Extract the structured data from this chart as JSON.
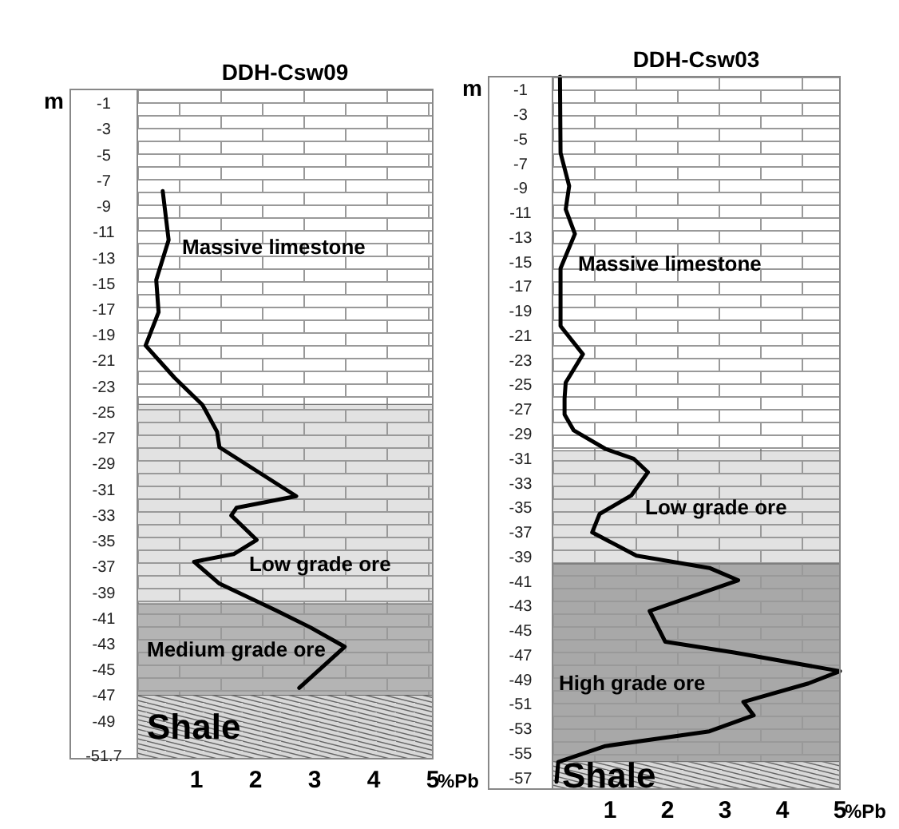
{
  "chart_data": [
    {
      "type": "line",
      "title": "DDH-Csw09",
      "xlabel": "%Pb",
      "ylabel": "m",
      "xlim": [
        0,
        5
      ],
      "xticks": [
        1,
        2,
        3,
        4,
        5
      ],
      "ylim": [
        -52,
        0
      ],
      "yticks": [
        -1,
        -3,
        -5,
        -7,
        -9,
        -11,
        -13,
        -15,
        -17,
        -19,
        -21,
        -23,
        -25,
        -27,
        -29,
        -31,
        -33,
        -35,
        -37,
        -39,
        -41,
        -43,
        -45,
        -47,
        -49,
        -51.7
      ],
      "series": [
        {
          "color": "#000000",
          "x": [
            0.43,
            0.53,
            0.32,
            0.36,
            0.14,
            0.63,
            1.1,
            1.15,
            1.35,
            1.39,
            2.69,
            1.68,
            1.59,
            2.02,
            1.63,
            0.96,
            1.39,
            2.36,
            2.93,
            3.51,
            2.74
          ],
          "values": [
            -7.9,
            -11.7,
            -14.8,
            -17.3,
            -19.9,
            -22.4,
            -24.5,
            -24.9,
            -26.6,
            -27.8,
            -31.6,
            -32.5,
            -33.1,
            -35.0,
            -36.1,
            -36.7,
            -38.4,
            -40.5,
            -41.8,
            -43.3,
            -46.5
          ]
        }
      ],
      "bands": [
        {
          "axis": "y",
          "from": 0,
          "to": -24.5,
          "label": "Massive limestone",
          "color": "#ffffff"
        },
        {
          "axis": "y",
          "from": -24.5,
          "to": -40.0,
          "label": "Low grade ore",
          "color": "#e2e2e2"
        },
        {
          "axis": "y",
          "from": -40.0,
          "to": -47.1,
          "label": "Medium grade ore",
          "color": "#b4b4b4"
        },
        {
          "axis": "y",
          "from": -47.1,
          "to": -52,
          "label": "Shale",
          "color": "#d8d8d8"
        }
      ]
    },
    {
      "type": "line",
      "title": "DDH-Csw03",
      "xlabel": "%Pb",
      "ylabel": "m",
      "xlim": [
        0,
        5
      ],
      "xticks": [
        1,
        2,
        3,
        4,
        5
      ],
      "ylim": [
        -58,
        0
      ],
      "yticks": [
        -1,
        -3,
        -5,
        -7,
        -9,
        -11,
        -13,
        -15,
        -17,
        -19,
        -21,
        -23,
        -25,
        -27,
        -29,
        -31,
        -33,
        -35,
        -37,
        -39,
        -41,
        -43,
        -45,
        -47,
        -49,
        -51,
        -53,
        -55,
        -57
      ],
      "series": [
        {
          "color": "#000000",
          "x": [
            0.13,
            0.14,
            0.29,
            0.23,
            0.39,
            0.14,
            0.14,
            0.53,
            0.23,
            0.21,
            0.21,
            0.37,
            0.92,
            1.41,
            1.66,
            1.37,
            0.82,
            0.69,
            1.46,
            2.73,
            3.23,
            1.69,
            1.96,
            3.18,
            5.0,
            4.45,
            3.32,
            3.5,
            2.73,
            0.92,
            0.1,
            0.07
          ],
          "values": [
            0,
            -6.2,
            -8.9,
            -10.8,
            -12.8,
            -15.6,
            -20.3,
            -22.6,
            -24.9,
            -26.2,
            -27.5,
            -28.8,
            -30.3,
            -31.1,
            -32.2,
            -34.1,
            -35.6,
            -37.1,
            -39.0,
            -40.0,
            -41.0,
            -43.5,
            -46.0,
            -46.9,
            -48.4,
            -49.4,
            -50.9,
            -52.0,
            -53.3,
            -54.5,
            -55.8,
            -57.4
          ]
        }
      ],
      "bands": [
        {
          "axis": "y",
          "from": 0,
          "to": -30.5,
          "label": "Massive limestone",
          "color": "#ffffff"
        },
        {
          "axis": "y",
          "from": -30.5,
          "to": -39.7,
          "label": "Low grade ore",
          "color": "#e2e2e2"
        },
        {
          "axis": "y",
          "from": -39.7,
          "to": -55.8,
          "label": "High grade ore",
          "color": "#a8a8a8"
        },
        {
          "axis": "y",
          "from": -55.8,
          "to": -58,
          "label": "Shale",
          "color": "#d8d8d8"
        }
      ]
    }
  ]
}
